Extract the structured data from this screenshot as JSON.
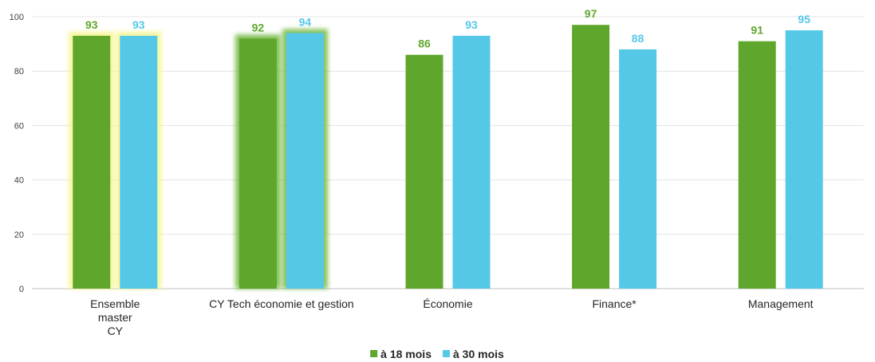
{
  "chart_data": {
    "type": "bar",
    "categories": [
      [
        "Ensemble",
        "master",
        "CY"
      ],
      [
        "CY Tech économie et gestion"
      ],
      [
        "Économie"
      ],
      [
        "Finance*"
      ],
      [
        "Management"
      ]
    ],
    "series": [
      {
        "name": "à 18 mois",
        "color": "#5fa72c",
        "values": [
          93,
          92,
          86,
          97,
          91
        ]
      },
      {
        "name": "à 30 mois",
        "color": "#55c8e8",
        "values": [
          93,
          94,
          93,
          88,
          95
        ]
      }
    ],
    "highlights": [
      {
        "category_index": 0,
        "series": "both",
        "glow": "#f7f58a"
      },
      {
        "category_index": 1,
        "series": "both",
        "glow": "#6fb83e"
      }
    ],
    "ylim": [
      0,
      100
    ],
    "yticks": [
      0,
      20,
      40,
      60,
      80,
      100
    ],
    "grid": true,
    "legend": "bottom-center",
    "title": "",
    "xlabel": "",
    "ylabel": ""
  }
}
